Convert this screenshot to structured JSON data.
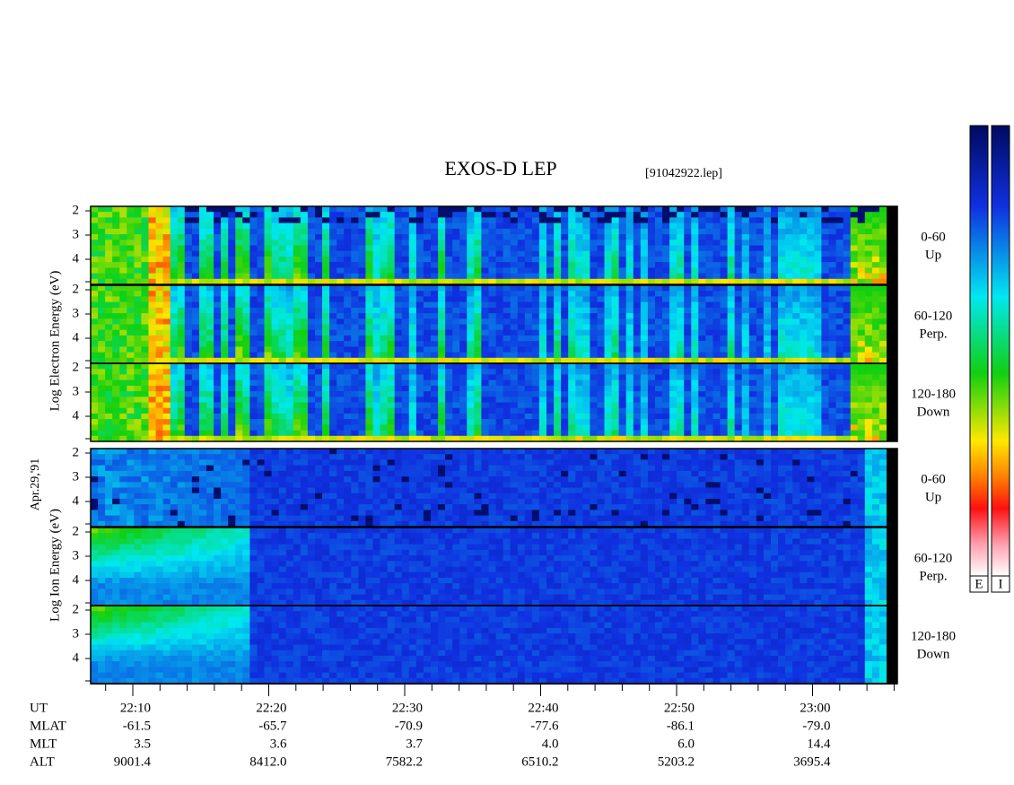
{
  "title": "EXOS-D LEP",
  "file": "[91042922.lep]",
  "date": "Apr.29,'91",
  "groups": [
    {
      "label": "Log Electron Energy (eV)",
      "panels": [
        {
          "pitch": "0-60",
          "dir": "Up"
        },
        {
          "pitch": "60-120",
          "dir": "Perp."
        },
        {
          "pitch": "120-180",
          "dir": "Down"
        }
      ]
    },
    {
      "label": "Log Ion Energy (eV)",
      "panels": [
        {
          "pitch": "0-60",
          "dir": "Up"
        },
        {
          "pitch": "60-120",
          "dir": "Perp."
        },
        {
          "pitch": "120-180",
          "dir": "Down"
        }
      ]
    }
  ],
  "energy_ticks": [
    "2",
    "3",
    "4"
  ],
  "colorbars": [
    "E",
    "I"
  ],
  "table": {
    "labels": [
      "UT",
      "MLAT",
      "MLT",
      "ALT"
    ],
    "rows": [
      [
        "22:10",
        "22:20",
        "22:30",
        "22:40",
        "22:50",
        "23:00"
      ],
      [
        "-61.5",
        "-65.7",
        "-70.9",
        "-77.6",
        "-86.1",
        "-79.0"
      ],
      [
        "3.5",
        "3.6",
        "3.7",
        "4.0",
        "6.0",
        "14.4"
      ],
      [
        "9001.4",
        "8412.0",
        "7582.2",
        "6510.2",
        "5203.2",
        "3695.4"
      ]
    ]
  }
}
